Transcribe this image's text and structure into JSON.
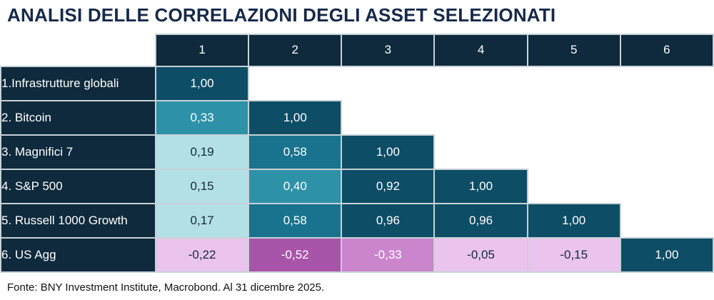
{
  "title": "ANALISI DELLE CORRELAZIONI DEGLI ASSET SELEZIONATI",
  "source": "Fonte: BNY Investment Institute, Macrobond. Al 31 dicembre 2025.",
  "colors": {
    "title_navy": "#16294b",
    "header_navy": "#0e2a3c",
    "grid_line": "#c7d2d8",
    "dark_teal": "#0E4D66",
    "medium_teal": "#19738F",
    "teal": "#2D92A8",
    "light_cyan": "#B3E0E7",
    "light_pink": "#EAC4EC",
    "orchid": "#CA85CD",
    "purple": "#A854A9"
  },
  "chart_data": {
    "type": "heatmap",
    "title": "ANALISI DELLE CORRELAZIONI DEGLI ASSET SELEZIONATI",
    "decimal_separator": ",",
    "columns": [
      "1",
      "2",
      "3",
      "4",
      "5",
      "6"
    ],
    "rows": [
      {
        "label": "1.Infrastrutture globali",
        "values": [
          1.0
        ]
      },
      {
        "label": "2. Bitcoin",
        "values": [
          0.33,
          1.0
        ]
      },
      {
        "label": "3. Magnifici 7",
        "values": [
          0.19,
          0.58,
          1.0
        ]
      },
      {
        "label": "4. S&P 500",
        "values": [
          0.15,
          0.4,
          0.92,
          1.0
        ]
      },
      {
        "label": "5. Russell 1000 Growth",
        "values": [
          0.17,
          0.58,
          0.96,
          0.96,
          1.0
        ]
      },
      {
        "label": "6. US Agg",
        "values": [
          -0.22,
          -0.52,
          -0.33,
          -0.05,
          -0.15,
          1.0
        ]
      }
    ],
    "color_scale": [
      {
        "min": 0.9,
        "bg": "#0E4D66",
        "text": "#FFFFFF"
      },
      {
        "min": 0.5,
        "bg": "#19738F",
        "text": "#FFFFFF"
      },
      {
        "min": 0.25,
        "bg": "#2D92A8",
        "text": "#FFFFFF"
      },
      {
        "min": 0.0,
        "bg": "#B3E0E7",
        "text": "#12293B"
      },
      {
        "min": -0.25,
        "bg": "#EAC4EC",
        "text": "#12293B"
      },
      {
        "min": -0.45,
        "bg": "#CA85CD",
        "text": "#FFFFFF"
      },
      {
        "min": -1.0,
        "bg": "#A854A9",
        "text": "#FFFFFF"
      }
    ]
  }
}
